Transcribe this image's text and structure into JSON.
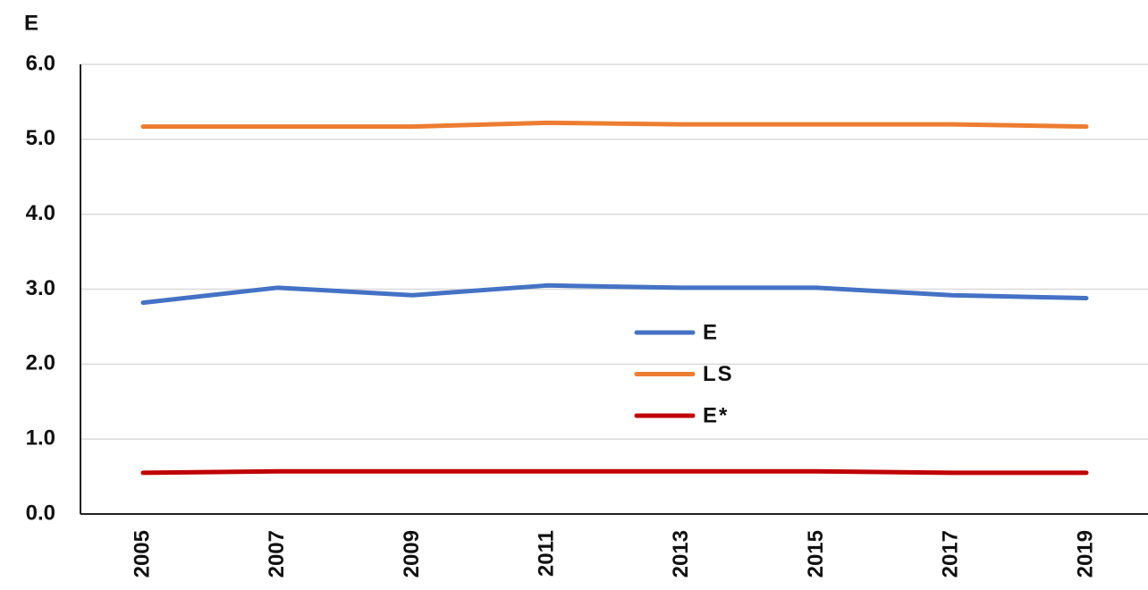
{
  "chart_data": {
    "type": "line",
    "y_label": "E",
    "categories": [
      "2005",
      "2007",
      "2009",
      "2011",
      "2013",
      "2015",
      "2017",
      "2019"
    ],
    "series": [
      {
        "name": "E",
        "color": "#4472c4",
        "values": [
          2.82,
          3.02,
          2.92,
          3.05,
          3.02,
          3.02,
          2.92,
          2.88
        ]
      },
      {
        "name": "LS",
        "color": "#ed7d31",
        "values": [
          5.17,
          5.17,
          5.17,
          5.22,
          5.2,
          5.2,
          5.2,
          5.17
        ]
      },
      {
        "name": "E*",
        "color": "#c00000",
        "values": [
          0.55,
          0.57,
          0.57,
          0.57,
          0.57,
          0.57,
          0.55,
          0.55
        ]
      }
    ],
    "ylim": [
      0,
      6
    ],
    "yticks": [
      {
        "value": 0,
        "label": "0.0"
      },
      {
        "value": 1,
        "label": "1.0"
      },
      {
        "value": 2,
        "label": "2.0"
      },
      {
        "value": 3,
        "label": "3.0"
      },
      {
        "value": 4,
        "label": "4.0"
      },
      {
        "value": 5,
        "label": "5.0"
      },
      {
        "value": 6,
        "label": "6.0"
      }
    ],
    "grid": true
  }
}
